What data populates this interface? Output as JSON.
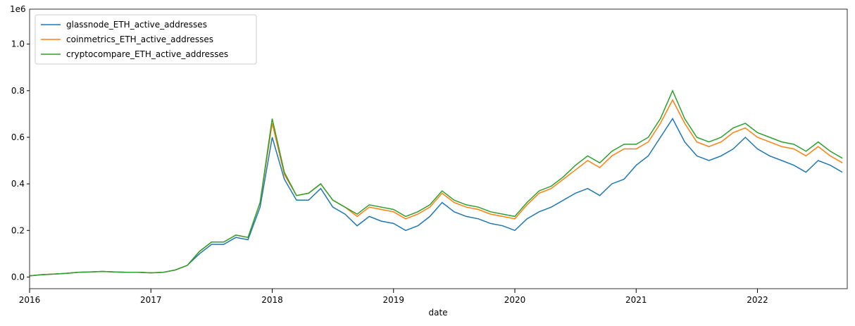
{
  "chart_data": {
    "type": "line",
    "y_offset_label": "1e6",
    "x_label": "date",
    "x": [
      2016.0,
      2016.1,
      2016.2,
      2016.3,
      2016.4,
      2016.5,
      2016.6,
      2016.7,
      2016.8,
      2016.9,
      2017.0,
      2017.1,
      2017.2,
      2017.3,
      2017.4,
      2017.5,
      2017.6,
      2017.7,
      2017.8,
      2017.9,
      2018.0,
      2018.1,
      2018.2,
      2018.3,
      2018.4,
      2018.5,
      2018.6,
      2018.7,
      2018.8,
      2018.9,
      2019.0,
      2019.1,
      2019.2,
      2019.3,
      2019.4,
      2019.5,
      2019.6,
      2019.7,
      2019.8,
      2019.9,
      2020.0,
      2020.1,
      2020.2,
      2020.3,
      2020.4,
      2020.5,
      2020.6,
      2020.7,
      2020.8,
      2020.9,
      2021.0,
      2021.1,
      2021.2,
      2021.3,
      2021.4,
      2021.5,
      2021.6,
      2021.7,
      2021.8,
      2021.9,
      2022.0,
      2022.1,
      2022.2,
      2022.3,
      2022.4,
      2022.5,
      2022.6,
      2022.7
    ],
    "series": [
      {
        "name": "glassnode_ETH_active_addresses",
        "color": "#1f77b4",
        "values": [
          0.005,
          0.01,
          0.013,
          0.016,
          0.02,
          0.022,
          0.024,
          0.022,
          0.02,
          0.02,
          0.018,
          0.02,
          0.03,
          0.05,
          0.1,
          0.14,
          0.14,
          0.17,
          0.16,
          0.3,
          0.6,
          0.42,
          0.33,
          0.33,
          0.38,
          0.3,
          0.27,
          0.22,
          0.26,
          0.24,
          0.23,
          0.2,
          0.22,
          0.26,
          0.32,
          0.28,
          0.26,
          0.25,
          0.23,
          0.22,
          0.2,
          0.25,
          0.28,
          0.3,
          0.33,
          0.36,
          0.38,
          0.35,
          0.4,
          0.42,
          0.48,
          0.52,
          0.6,
          0.68,
          0.58,
          0.52,
          0.5,
          0.52,
          0.55,
          0.6,
          0.55,
          0.52,
          0.5,
          0.48,
          0.45,
          0.5,
          0.48,
          0.45
        ]
      },
      {
        "name": "coinmetrics_ETH_active_addresses",
        "color": "#ff7f0e",
        "values": [
          0.005,
          0.01,
          0.013,
          0.016,
          0.02,
          0.022,
          0.024,
          0.022,
          0.02,
          0.02,
          0.018,
          0.02,
          0.03,
          0.05,
          0.11,
          0.15,
          0.15,
          0.18,
          0.17,
          0.32,
          0.66,
          0.44,
          0.35,
          0.36,
          0.4,
          0.33,
          0.3,
          0.26,
          0.3,
          0.29,
          0.28,
          0.25,
          0.27,
          0.3,
          0.36,
          0.32,
          0.3,
          0.29,
          0.27,
          0.26,
          0.25,
          0.31,
          0.36,
          0.38,
          0.42,
          0.46,
          0.5,
          0.47,
          0.52,
          0.55,
          0.55,
          0.58,
          0.66,
          0.76,
          0.66,
          0.58,
          0.56,
          0.58,
          0.62,
          0.64,
          0.6,
          0.58,
          0.56,
          0.55,
          0.52,
          0.56,
          0.52,
          0.49
        ]
      },
      {
        "name": "cryptocompare_ETH_active_addresses",
        "color": "#2ca02c",
        "values": [
          0.005,
          0.01,
          0.013,
          0.016,
          0.02,
          0.022,
          0.024,
          0.022,
          0.02,
          0.02,
          0.018,
          0.02,
          0.03,
          0.05,
          0.11,
          0.15,
          0.15,
          0.18,
          0.17,
          0.32,
          0.68,
          0.45,
          0.35,
          0.36,
          0.4,
          0.33,
          0.3,
          0.27,
          0.31,
          0.3,
          0.29,
          0.26,
          0.28,
          0.31,
          0.37,
          0.33,
          0.31,
          0.3,
          0.28,
          0.27,
          0.26,
          0.32,
          0.37,
          0.39,
          0.43,
          0.48,
          0.52,
          0.49,
          0.54,
          0.57,
          0.57,
          0.6,
          0.68,
          0.8,
          0.68,
          0.6,
          0.58,
          0.6,
          0.64,
          0.66,
          0.62,
          0.6,
          0.58,
          0.57,
          0.54,
          0.58,
          0.54,
          0.51
        ]
      }
    ],
    "xlim": [
      2016.0,
      2022.74
    ],
    "xticks": [
      2016,
      2017,
      2018,
      2019,
      2020,
      2021,
      2022
    ],
    "ylim": [
      -0.05,
      1.15
    ],
    "yticks": [
      {
        "value": 0,
        "label": "0.0"
      },
      0.2,
      0.4,
      0.6,
      0.8,
      {
        "value": 1,
        "label": "1.0"
      }
    ],
    "legend": "upper left"
  }
}
